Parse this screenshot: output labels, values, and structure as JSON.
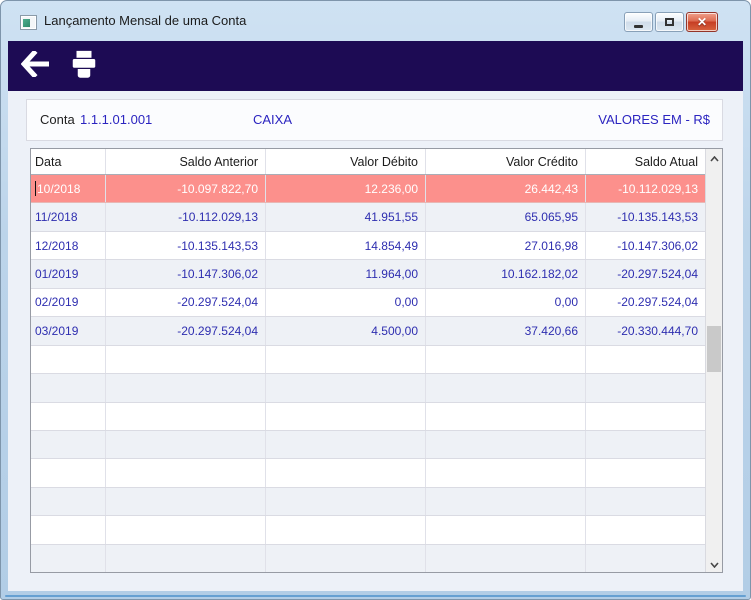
{
  "window": {
    "title": "Lançamento Mensal de uma Conta",
    "controls": {
      "minimize_icon": "minimize-bar",
      "maximize_icon": "maximize-square",
      "close_icon": "✕"
    }
  },
  "toolbar": {
    "back_icon": "back-arrow",
    "print_icon": "printer"
  },
  "account_panel": {
    "conta_label": "Conta",
    "account_code": "1.1.1.01.001",
    "account_name": "CAIXA",
    "currency_note": "VALORES EM - R$"
  },
  "table": {
    "columns": [
      "Data",
      "Saldo Anterior",
      "Valor Débito",
      "Valor Crédito",
      "Saldo Atual"
    ],
    "rows": [
      [
        "10/2018",
        "-10.097.822,70",
        "12.236,00",
        "26.442,43",
        "-10.112.029,13"
      ],
      [
        "11/2018",
        "-10.112.029,13",
        "41.951,55",
        "65.065,95",
        "-10.135.143,53"
      ],
      [
        "12/2018",
        "-10.135.143,53",
        "14.854,49",
        "27.016,98",
        "-10.147.306,02"
      ],
      [
        "01/2019",
        "-10.147.306,02",
        "11.964,00",
        "10.162.182,02",
        "-20.297.524,04"
      ],
      [
        "02/2019",
        "-20.297.524,04",
        "0,00",
        "0,00",
        "-20.297.524,04"
      ],
      [
        "03/2019",
        "-20.297.524,04",
        "4.500,00",
        "37.420,66",
        "-20.330.444,70"
      ]
    ],
    "selected_row_index": 0,
    "empty_row_count": 8,
    "scrollbar": {
      "up_icon": "chevron-up",
      "down_icon": "chevron-down"
    }
  },
  "colors": {
    "toolbar_bg": "#1d0b54",
    "selected_row_bg": "#fc908c",
    "selected_row_text": "#ffffff",
    "value_text": "#2e2eb0",
    "alt_row_bg": "#eef1f6"
  }
}
